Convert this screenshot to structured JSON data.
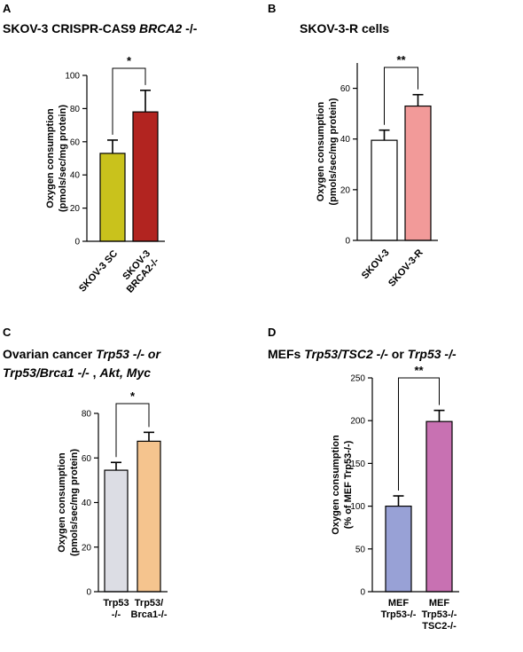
{
  "chart_data": [
    {
      "panel": "A",
      "type": "bar",
      "title_parts": [
        {
          "text": "SKOV-3 CRISPR-CAS9 ",
          "italic": false
        },
        {
          "text": "BRCA2",
          "italic": true
        },
        {
          "text": " -/-",
          "italic": false
        }
      ],
      "ylabel_lines": [
        "Oxygen consumption",
        "(pmols/sec/mg protein)"
      ],
      "ylim": [
        0,
        100
      ],
      "yticks": [
        0,
        20,
        40,
        60,
        80,
        100
      ],
      "categories": [
        [
          "SKOV-3 SC"
        ],
        [
          "SKOV-3",
          "BRCA2-/-"
        ]
      ],
      "values": [
        53,
        78
      ],
      "errors": [
        8,
        13
      ],
      "colors": [
        "#c9c21c",
        "#b22420"
      ],
      "significance": "*"
    },
    {
      "panel": "B",
      "type": "bar",
      "title_parts": [
        {
          "text": "SKOV-3-R cells",
          "italic": false
        }
      ],
      "ylabel_lines": [
        "Oxygen consumption",
        "(pmols/sec/mg protein)"
      ],
      "ylim": [
        0,
        70
      ],
      "yticks": [
        0,
        20,
        40,
        60
      ],
      "categories": [
        [
          "SKOV-3"
        ],
        [
          "SKOV-3-R"
        ]
      ],
      "values": [
        39.5,
        53
      ],
      "errors": [
        4,
        4.5
      ],
      "colors": [
        "#ffffff",
        "#f29a99"
      ],
      "significance": "**"
    },
    {
      "panel": "C",
      "type": "bar",
      "title_parts": [
        {
          "text": "Ovarian cancer ",
          "italic": false
        },
        {
          "text": "Trp53 -/- or",
          "italic": true
        },
        {
          "text": "\n",
          "italic": false
        },
        {
          "text": "Trp53/Brca1 -/-",
          "italic": true
        },
        {
          "text": " , ",
          "italic": false
        },
        {
          "text": "Akt, Myc",
          "italic": true
        }
      ],
      "ylabel_lines": [
        "Oxygen consumption",
        "(pmols/sec/mg protein)"
      ],
      "ylim": [
        0,
        80
      ],
      "yticks": [
        0,
        20,
        40,
        60,
        80
      ],
      "categories": [
        [
          "Trp53",
          "-/-"
        ],
        [
          "Trp53/",
          "Brca1-/-"
        ]
      ],
      "values": [
        54.5,
        67.5
      ],
      "errors": [
        3.5,
        4
      ],
      "colors": [
        "#dcdde4",
        "#f5c48e"
      ],
      "significance": "*"
    },
    {
      "panel": "D",
      "type": "bar",
      "title_parts": [
        {
          "text": "MEFs ",
          "italic": false
        },
        {
          "text": "Trp53/TSC2 -/-",
          "italic": true
        },
        {
          "text": " or ",
          "italic": false
        },
        {
          "text": "Trp53 -/-",
          "italic": true
        }
      ],
      "ylabel_lines": [
        "Oxygen consumption",
        "(% of MEF Trp53-/-)"
      ],
      "ylim": [
        0,
        250
      ],
      "yticks": [
        0,
        50,
        100,
        150,
        200,
        250
      ],
      "categories": [
        [
          "MEF",
          "Trp53-/-"
        ],
        [
          "MEF",
          "Trp53-/-",
          "TSC2-/-"
        ]
      ],
      "values": [
        100,
        199
      ],
      "errors": [
        12,
        13
      ],
      "colors": [
        "#98a1d6",
        "#c871b2"
      ],
      "significance": "**"
    }
  ]
}
